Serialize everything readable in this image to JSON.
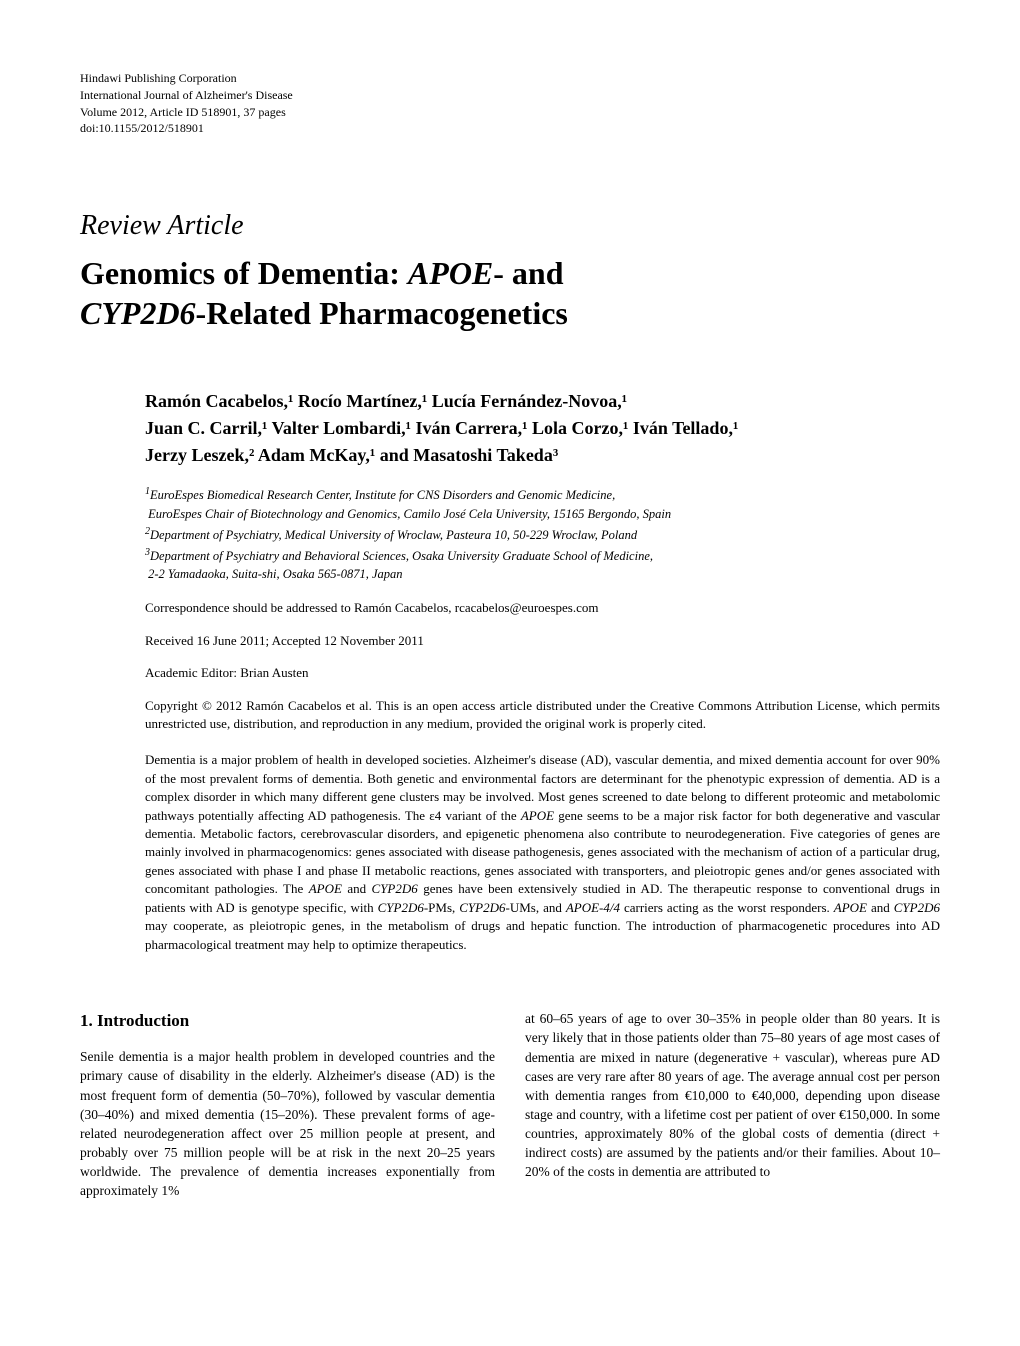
{
  "publisher": {
    "line1": "Hindawi Publishing Corporation",
    "line2": "International Journal of Alzheimer's Disease",
    "line3": "Volume 2012, Article ID 518901, 37 pages",
    "line4": "doi:10.1155/2012/518901"
  },
  "article_type": "Review Article",
  "title_parts": {
    "p1": "Genomics of Dementia: ",
    "gene1": "APOE",
    "p2": "- and ",
    "gene2": "CYP2D6",
    "p3": "-Related Pharmacogenetics"
  },
  "authors_line1": "Ramón Cacabelos,¹ Rocío Martínez,¹ Lucía Fernández-Novoa,¹",
  "authors_line2": "Juan C. Carril,¹ Valter Lombardi,¹ Iván Carrera,¹ Lola Corzo,¹ Iván Tellado,¹",
  "authors_line3": "Jerzy Leszek,² Adam McKay,¹ and Masatoshi Takeda³",
  "affil1_sup": "1",
  "affil1_a": "EuroEspes Biomedical Research Center, Institute for CNS Disorders and Genomic Medicine,",
  "affil1_b": "EuroEspes Chair of Biotechnology and Genomics, Camilo José Cela University, 15165 Bergondo, Spain",
  "affil2_sup": "2",
  "affil2": "Department of Psychiatry, Medical University of Wroclaw, Pasteura 10, 50-229 Wroclaw, Poland",
  "affil3_sup": "3",
  "affil3_a": "Department of Psychiatry and Behavioral Sciences, Osaka University Graduate School of Medicine,",
  "affil3_b": "2-2 Yamadaoka, Suita-shi, Osaka 565-0871, Japan",
  "correspondence_prefix": "Correspondence should be addressed to Ramón Cacabelos, ",
  "correspondence_email": "rcacabelos@euroespes.com",
  "dates": "Received 16 June 2011; Accepted 12 November 2011",
  "editor": "Academic Editor: Brian Austen",
  "copyright": "Copyright © 2012 Ramón Cacabelos et al. This is an open access article distributed under the Creative Commons Attribution License, which permits unrestricted use, distribution, and reproduction in any medium, provided the original work is properly cited.",
  "abstract_p1": "Dementia is a major problem of health in developed societies. Alzheimer's disease (AD), vascular dementia, and mixed dementia account for over 90% of the most prevalent forms of dementia. Both genetic and environmental factors are determinant for the phenotypic expression of dementia. AD is a complex disorder in which many different gene clusters may be involved. Most genes screened to date belong to different proteomic and metabolomic pathways potentially affecting AD pathogenesis. The ",
  "abstract_eps": "ε",
  "abstract_p2": "4 variant of the ",
  "abstract_g1": "APOE",
  "abstract_p3": " gene seems to be a major risk factor for both degenerative and vascular dementia. Metabolic factors, cerebrovascular disorders, and epigenetic phenomena also contribute to neurodegeneration. Five categories of genes are mainly involved in pharmacogenomics: genes associated with disease pathogenesis, genes associated with the mechanism of action of a particular drug, genes associated with phase I and phase II metabolic reactions, genes associated with transporters, and pleiotropic genes and/or genes associated with concomitant pathologies. The ",
  "abstract_g2": "APOE",
  "abstract_p4": " and ",
  "abstract_g3": "CYP2D6",
  "abstract_p5": " genes have been extensively studied in AD. The therapeutic response to conventional drugs in patients with AD is genotype specific, with ",
  "abstract_g4": "CYP2D6",
  "abstract_p6": "-PMs, ",
  "abstract_g5": "CYP2D6",
  "abstract_p7": "-UMs, and ",
  "abstract_g6": "APOE-4/4",
  "abstract_p8": " carriers acting as the worst responders. ",
  "abstract_g7": "APOE",
  "abstract_p9": " and ",
  "abstract_g8": "CYP2D6",
  "abstract_p10": " may cooperate, as pleiotropic genes, in the metabolism of drugs and hepatic function. The introduction of pharmacogenetic procedures into AD pharmacological treatment may help to optimize therapeutics.",
  "section1_heading": "1. Introduction",
  "body_col1": "Senile dementia is a major health problem in developed countries and the primary cause of disability in the elderly. Alzheimer's disease (AD) is the most frequent form of dementia (50–70%), followed by vascular dementia (30–40%) and mixed dementia (15–20%). These prevalent forms of age-related neurodegeneration affect over 25 million people at present, and probably over 75 million people will be at risk in the next 20–25 years worldwide. The prevalence of dementia increases exponentially from approximately 1%",
  "body_col2": "at 60–65 years of age to over 30–35% in people older than 80 years. It is very likely that in those patients older than 75–80 years of age most cases of dementia are mixed in nature (degenerative + vascular), whereas pure AD cases are very rare after 80 years of age. The average annual cost per person with dementia ranges from €10,000 to €40,000, depending upon disease stage and country, with a lifetime cost per patient of over €150,000. In some countries, approximately 80% of the global costs of dementia (direct + indirect costs) are assumed by the patients and/or their families. About 10–20% of the costs in dementia are attributed to"
}
